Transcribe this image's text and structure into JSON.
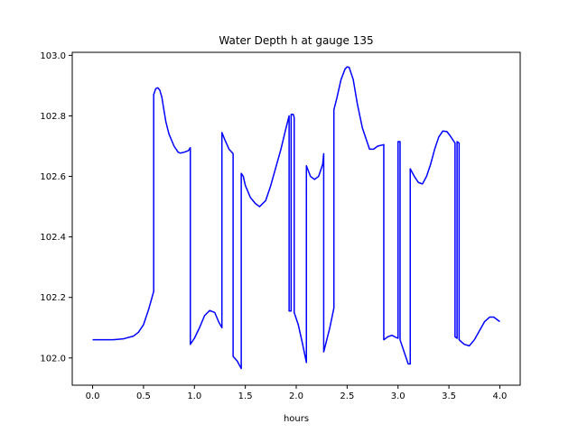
{
  "chart_data": {
    "type": "line",
    "title": "Water Depth h at gauge 135",
    "xlabel": "hours",
    "ylabel": "",
    "xlim": [
      -0.2,
      4.2
    ],
    "ylim": [
      101.91,
      103.01
    ],
    "xticks": [
      0.0,
      0.5,
      1.0,
      1.5,
      2.0,
      2.5,
      3.0,
      3.5,
      4.0
    ],
    "xtick_labels": [
      "0.0",
      "0.5",
      "1.0",
      "1.5",
      "2.0",
      "2.5",
      "3.0",
      "3.5",
      "4.0"
    ],
    "yticks": [
      102.0,
      102.2,
      102.4,
      102.6,
      102.8,
      103.0
    ],
    "ytick_labels": [
      "102.0",
      "102.2",
      "102.4",
      "102.6",
      "102.8",
      "103.0"
    ],
    "grid": false,
    "colors": {
      "line": "#0000ff",
      "axes": "#000000",
      "background": "#ffffff"
    },
    "series": [
      {
        "x": [
          0.0,
          0.1,
          0.2,
          0.3,
          0.4,
          0.45,
          0.5,
          0.55,
          0.6,
          0.6,
          0.62,
          0.64,
          0.66,
          0.68,
          0.7,
          0.72,
          0.75,
          0.8,
          0.84,
          0.86,
          0.9,
          0.94,
          0.96,
          0.96,
          1.0,
          1.05,
          1.1,
          1.15,
          1.2,
          1.24,
          1.27,
          1.27,
          1.3,
          1.34,
          1.38,
          1.38,
          1.42,
          1.46,
          1.46,
          1.48,
          1.5,
          1.55,
          1.6,
          1.64,
          1.7,
          1.75,
          1.8,
          1.85,
          1.9,
          1.93,
          1.93,
          1.95,
          1.95,
          1.97,
          1.98,
          1.98,
          2.02,
          2.06,
          2.1,
          2.1,
          2.14,
          2.18,
          2.22,
          2.26,
          2.27,
          2.27,
          2.3,
          2.33,
          2.37,
          2.37,
          2.4,
          2.44,
          2.48,
          2.5,
          2.52,
          2.56,
          2.6,
          2.65,
          2.7,
          2.72,
          2.76,
          2.8,
          2.86,
          2.86,
          2.9,
          2.94,
          2.98,
          3.0,
          3.0,
          3.02,
          3.02,
          3.06,
          3.1,
          3.12,
          3.12,
          3.16,
          3.2,
          3.24,
          3.28,
          3.32,
          3.36,
          3.4,
          3.44,
          3.48,
          3.51,
          3.54,
          3.56,
          3.56,
          3.58,
          3.58,
          3.6,
          3.6,
          3.65,
          3.7,
          3.75,
          3.8,
          3.85,
          3.9,
          3.94,
          3.98,
          4.0
        ],
        "y": [
          102.06,
          102.06,
          102.06,
          102.063,
          102.072,
          102.085,
          102.11,
          102.16,
          102.22,
          102.87,
          102.89,
          102.893,
          102.885,
          102.862,
          102.82,
          102.78,
          102.74,
          102.7,
          102.68,
          102.677,
          102.68,
          102.685,
          102.695,
          102.045,
          102.065,
          102.1,
          102.14,
          102.157,
          102.15,
          102.118,
          102.1,
          102.745,
          102.72,
          102.69,
          102.675,
          102.005,
          101.99,
          101.965,
          102.61,
          102.6,
          102.57,
          102.53,
          102.51,
          102.5,
          102.52,
          102.57,
          102.63,
          102.69,
          102.76,
          102.8,
          102.155,
          102.155,
          102.805,
          102.805,
          102.795,
          102.15,
          102.11,
          102.05,
          101.985,
          102.635,
          102.6,
          102.59,
          102.6,
          102.64,
          102.675,
          102.02,
          102.06,
          102.1,
          102.165,
          102.82,
          102.86,
          102.92,
          102.955,
          102.962,
          102.96,
          102.92,
          102.84,
          102.76,
          102.71,
          102.69,
          102.69,
          102.7,
          102.705,
          102.06,
          102.07,
          102.075,
          102.068,
          102.065,
          102.715,
          102.715,
          102.06,
          102.02,
          101.98,
          101.98,
          102.625,
          102.6,
          102.58,
          102.575,
          102.6,
          102.64,
          102.69,
          102.73,
          102.75,
          102.748,
          102.735,
          102.72,
          102.71,
          102.07,
          102.065,
          102.715,
          102.71,
          102.06,
          102.045,
          102.04,
          102.06,
          102.09,
          102.12,
          102.135,
          102.135,
          102.125,
          102.12
        ]
      }
    ]
  }
}
